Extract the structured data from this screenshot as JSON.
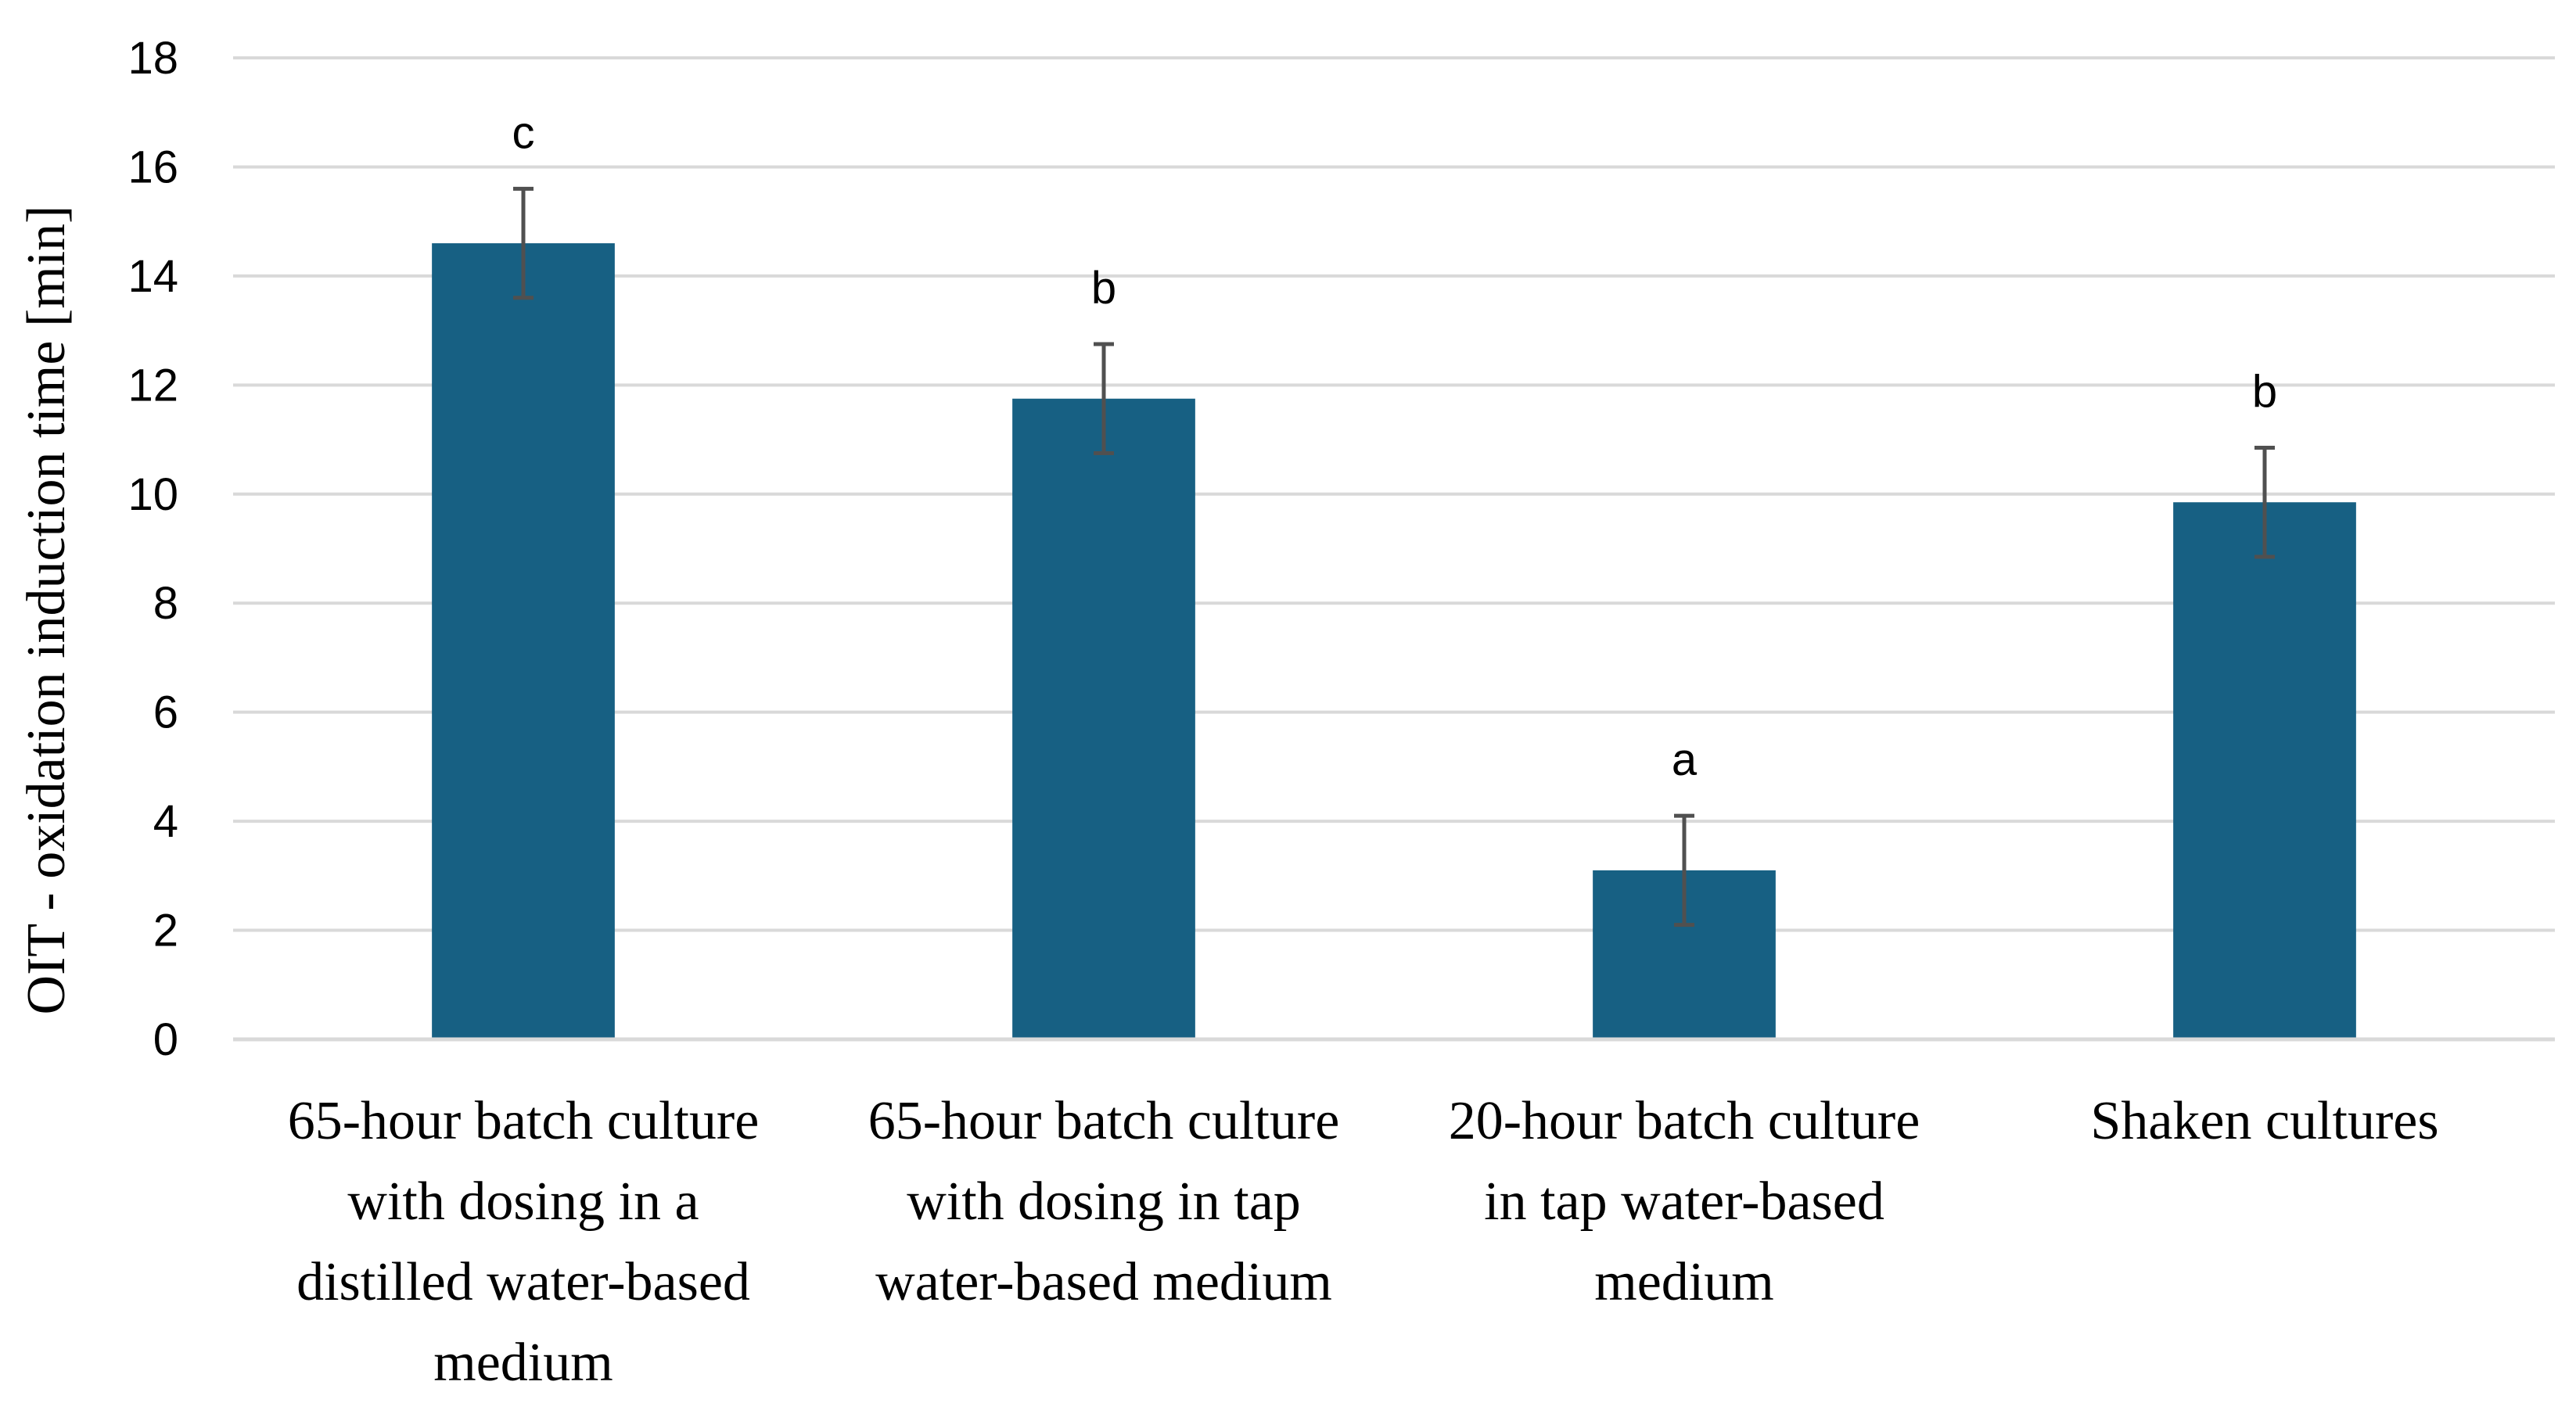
{
  "colors": {
    "bar": "#176083",
    "gridline": "#d9d9d9",
    "axis": "#d9d9d9",
    "error_bar": "#505050",
    "text": "#000000"
  },
  "chart_data": {
    "type": "bar",
    "title": "",
    "xlabel": "",
    "ylabel": "OIT - oxidation induction time [min]",
    "ylim": [
      0,
      18
    ],
    "yticks": [
      0,
      2,
      4,
      6,
      8,
      10,
      12,
      14,
      16,
      18
    ],
    "ytick_labels": [
      "0",
      "2",
      "4",
      "6",
      "8",
      "10",
      "12",
      "14",
      "16",
      "18"
    ],
    "grid": true,
    "legend": "none",
    "categories": [
      "65-hour batch culture with dosing in a distilled water-based medium",
      "65-hour batch culture with dosing in tap water-based medium",
      "20-hour batch culture in tap water-based medium",
      "Shaken cultures"
    ],
    "category_lines": [
      [
        "65-hour batch culture",
        "with dosing in a",
        "distilled water-based",
        "medium"
      ],
      [
        "65-hour batch culture",
        "with dosing in tap",
        "water-based medium"
      ],
      [
        "20-hour batch culture",
        "in tap water-based",
        "medium"
      ],
      [
        "Shaken cultures"
      ]
    ],
    "values": [
      14.6,
      11.75,
      3.1,
      9.85
    ],
    "errors": [
      1.0,
      1.0,
      1.0,
      1.0
    ],
    "significance_letters": [
      "c",
      "b",
      "a",
      "b"
    ]
  }
}
